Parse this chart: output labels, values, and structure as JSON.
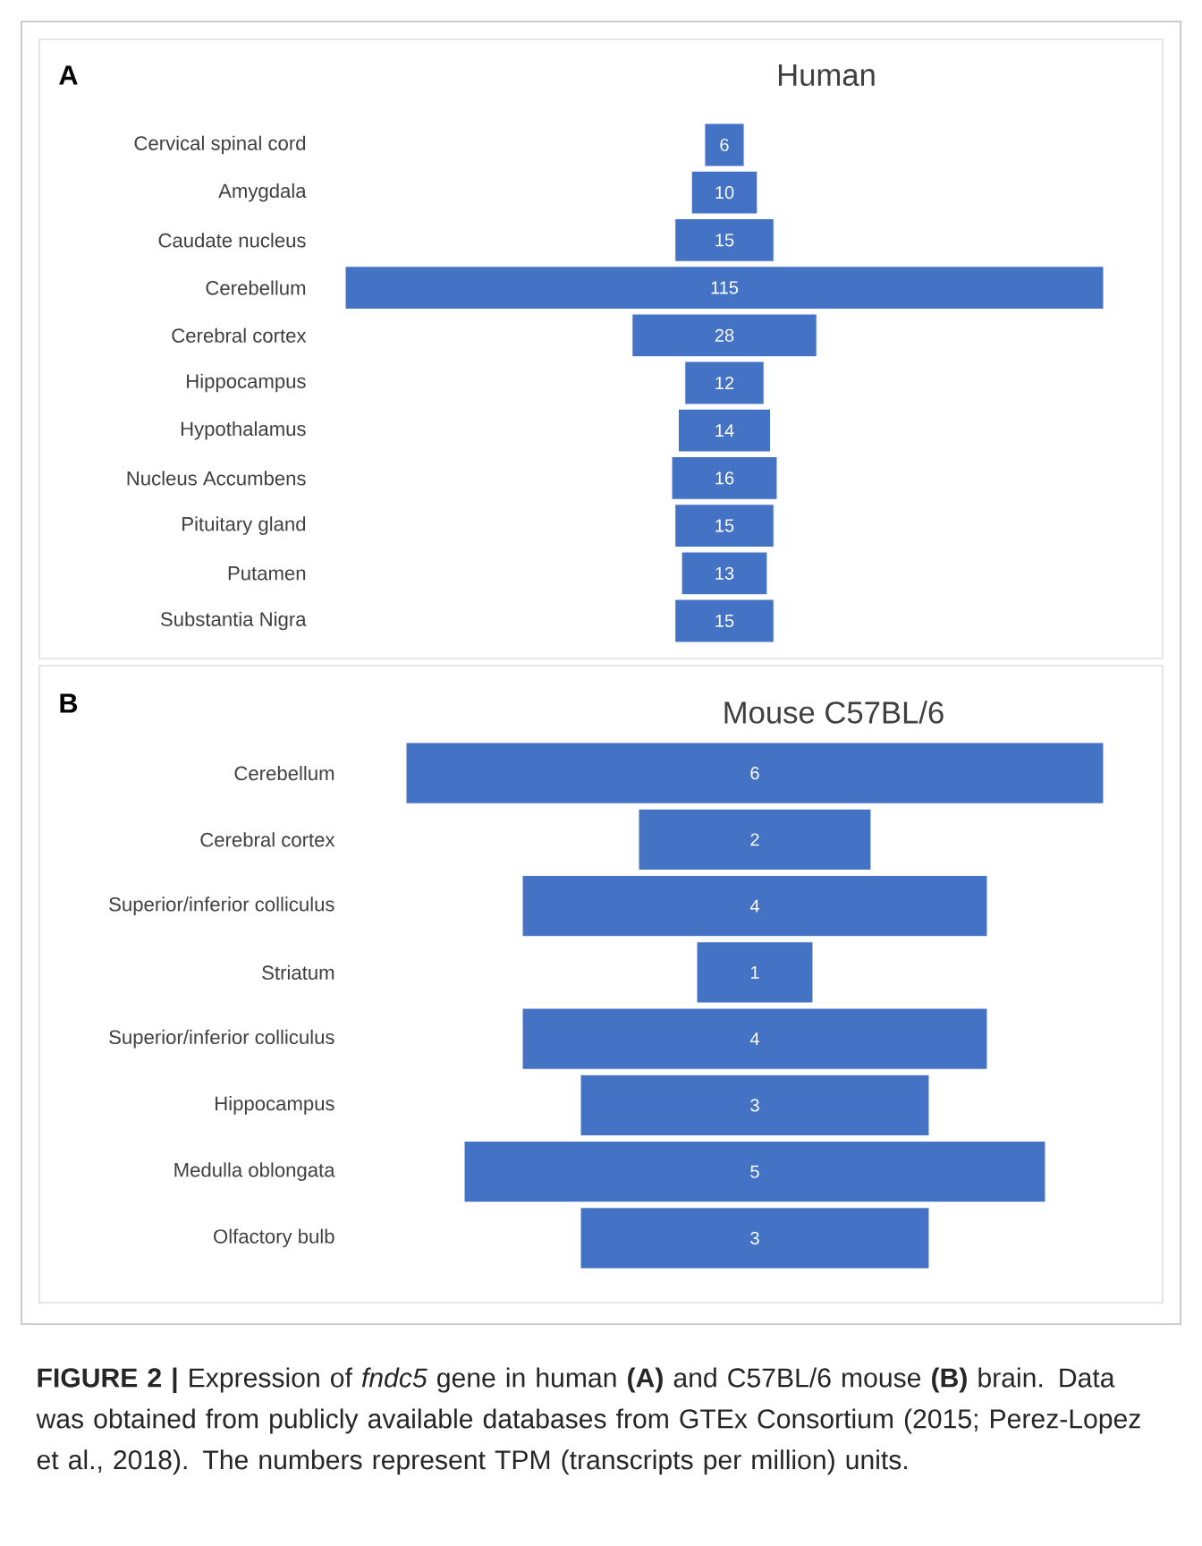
{
  "chart_data": [
    {
      "type": "other",
      "title": "Human",
      "color": "#4472c4",
      "data_labels": true,
      "categories": [
        "Cervical spinal cord",
        "Amygdala",
        "Caudate nucleus",
        "Cerebellum",
        "Cerebral cortex",
        "Hippocampus",
        "Hypothalamus",
        "Nucleus Accumbens",
        "Pituitary gland",
        "Putamen",
        "Substantia Nigra"
      ],
      "values": [
        6,
        10,
        15,
        115,
        28,
        12,
        14,
        16,
        15,
        13,
        15
      ],
      "annotations": [
        "A"
      ]
    },
    {
      "type": "other",
      "title": "Mouse C57BL/6",
      "color": "#4472c4",
      "data_labels": true,
      "categories": [
        "Cerebellum",
        "Cerebral cortex",
        "Superior/inferior colliculus",
        "Striatum",
        "Superior/inferior colliculus",
        "Hippocampus",
        "Medulla oblongata",
        "Olfactory bulb"
      ],
      "values": [
        6,
        2,
        4,
        1,
        4,
        3,
        5,
        3
      ],
      "annotations": [
        "B",
        "**FIGURE 2 |** Expression of *fndc5* gene in human **(A)** and C57BL/6 mouse **(B)** brain. Data was obtained from publicly available databases from GTEx Consortium (2015; Perez-Lopez et al., 2018). The numbers represent TPM (transcripts per million) units."
      ]
    }
  ]
}
